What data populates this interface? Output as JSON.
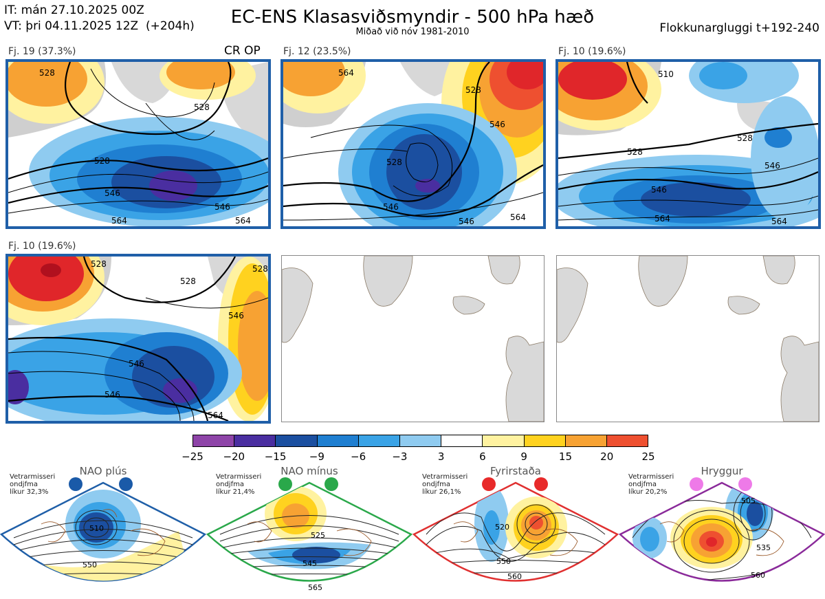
{
  "header": {
    "line1": "IT: mán 27.10.2025 00Z",
    "line2": "VT: þri 04.11.2025 12Z  (+204h)",
    "title": "EC-ENS Klasasviðsmyndir - 500 hPa hæð",
    "subtitle": "Miðað við nóv 1981-2010",
    "window": "Flokkunargluggi t+192-240"
  },
  "panels": [
    {
      "label": "Fj. 19 (37.3%)",
      "tag": "CR OP",
      "contours": [
        "528",
        "528",
        "546",
        "546",
        "564",
        "564",
        "528"
      ]
    },
    {
      "label": "Fj. 12 (23.5%)",
      "tag": "",
      "contours": [
        "528",
        "528",
        "546",
        "546",
        "546",
        "564",
        "564"
      ]
    },
    {
      "label": "Fj. 10 (19.6%)",
      "tag": "",
      "contours": [
        "510",
        "528",
        "528",
        "546",
        "546",
        "564",
        "564"
      ]
    },
    {
      "label": "Fj. 10 (19.6%)",
      "tag": "",
      "contours": [
        "528",
        "528",
        "546",
        "546",
        "546",
        "564",
        "528"
      ]
    },
    {
      "label": "",
      "tag": ""
    },
    {
      "label": "",
      "tag": ""
    }
  ],
  "colorbar": {
    "ticks": [
      "−25",
      "−20",
      "−15",
      "−9",
      "−6",
      "−3",
      "3",
      "6",
      "9",
      "15",
      "20",
      "25"
    ],
    "colors": [
      "#8e44a8",
      "#4a2ea0",
      "#1b4fa0",
      "#1f7fd1",
      "#3aa3e6",
      "#8fcbf0",
      "#ffffff",
      "#fff2a0",
      "#ffd21f",
      "#f7a233",
      "#ee5030",
      "#e0262a",
      "#b0101e"
    ]
  },
  "regimes": [
    {
      "name": "NAO plús",
      "prob_label": "Vetrarmisseri\nondjfma\nlíkur 32,3%",
      "color": "#1f5fa8",
      "dot": "#1a5aa8",
      "contours": [
        "510",
        "550"
      ]
    },
    {
      "name": "NAO mínus",
      "prob_label": "Vetrarmisseri\nondjfma\nlíkur 21,4%",
      "color": "#2aa84a",
      "dot": "#2aa84a",
      "contours": [
        "525",
        "545",
        "565"
      ]
    },
    {
      "name": "Fyrirstaða",
      "prob_label": "Vetrarmisseri\nondjfma\nlíkur 26,1%",
      "color": "#e03030",
      "dot": "#e82a2a",
      "contours": [
        "520",
        "550",
        "560"
      ]
    },
    {
      "name": "Hryggur",
      "prob_label": "Vetrarmisseri\nondjfma\nlíkur 20,2%",
      "color": "#8a2a9a",
      "dot": "#ee7ae8",
      "contours": [
        "505",
        "535",
        "560"
      ]
    }
  ]
}
